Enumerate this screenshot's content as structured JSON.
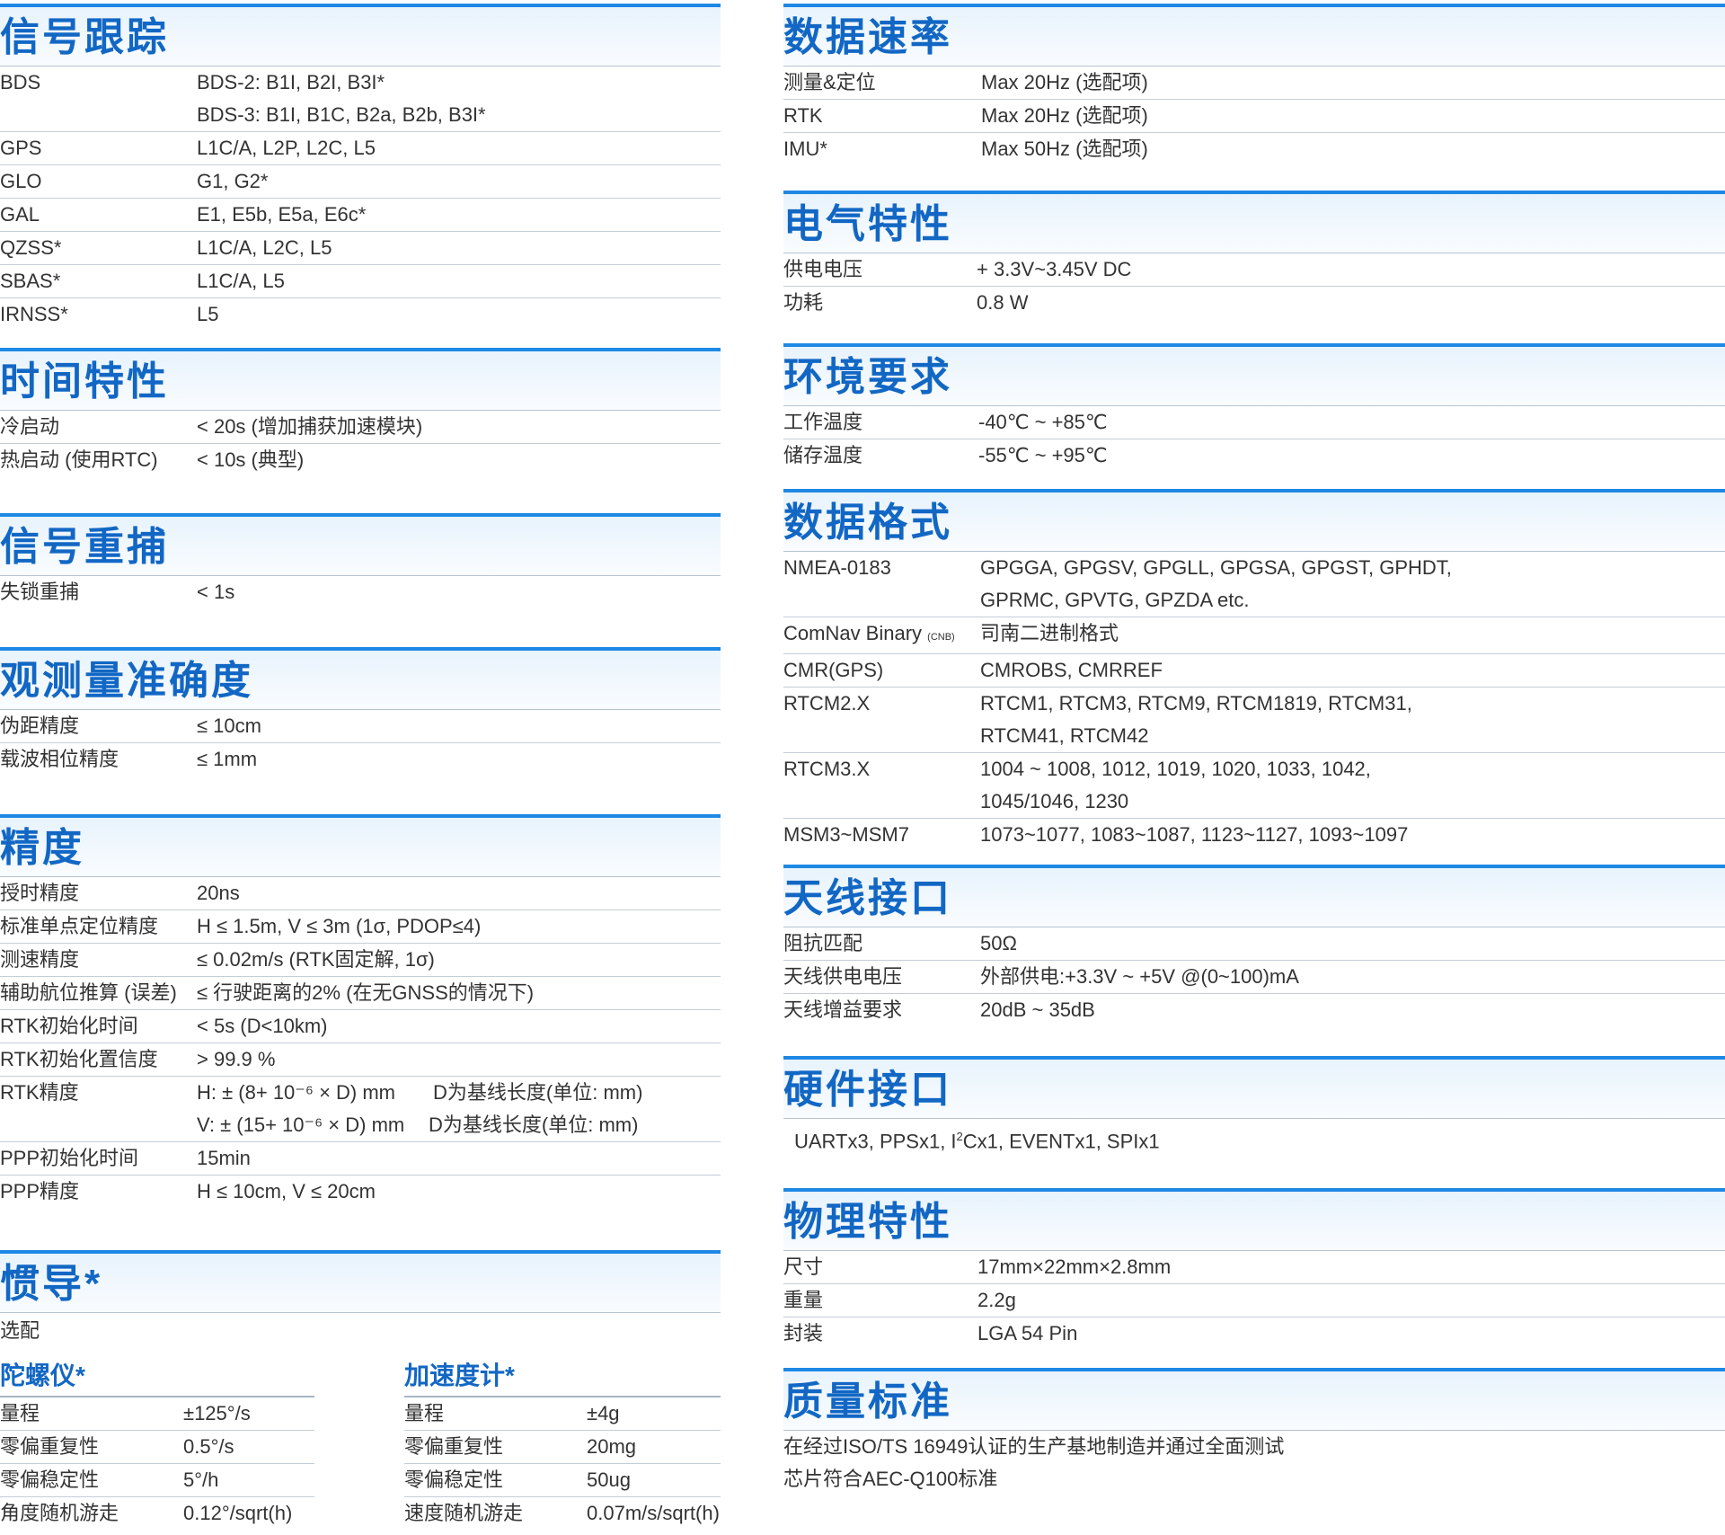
{
  "left_sections": {
    "signal_tracking": {
      "title": "信号跟踪",
      "rows": [
        {
          "label": "BDS",
          "value": "BDS-2: B1I, B2I, B3I*",
          "value2": "BDS-3: B1I, B1C, B2a, B2b, B3I*"
        },
        {
          "label": "GPS",
          "value": "L1C/A, L2P, L2C, L5"
        },
        {
          "label": "GLO",
          "value": "G1, G2*"
        },
        {
          "label": "GAL",
          "value": "E1, E5b, E5a, E6c*"
        },
        {
          "label": "QZSS*",
          "value": "L1C/A, L2C, L5"
        },
        {
          "label": "SBAS*",
          "value": "L1C/A, L5"
        },
        {
          "label": "IRNSS*",
          "value": "L5"
        }
      ]
    },
    "time_characteristics": {
      "title": "时间特性",
      "rows": [
        {
          "label": "冷启动",
          "value": "< 20s (增加捕获加速模块)"
        },
        {
          "label": "热启动 (使用RTC)",
          "value": "< 10s (典型)"
        }
      ]
    },
    "signal_reacquisition": {
      "title": "信号重捕",
      "rows": [
        {
          "label": "失锁重捕",
          "value": "< 1s"
        }
      ]
    },
    "measurement_accuracy": {
      "title": "观测量准确度",
      "rows": [
        {
          "label": "伪距精度",
          "value": "≤ 10cm"
        },
        {
          "label": "载波相位精度",
          "value": "≤ 1mm"
        }
      ]
    },
    "precision": {
      "title": "精度",
      "rows": [
        {
          "label": "授时精度",
          "value": "20ns"
        },
        {
          "label": "标准单点定位精度",
          "value": "H ≤ 1.5m, V ≤ 3m (1σ, PDOP≤4)"
        },
        {
          "label": "测速精度",
          "value": "≤ 0.02m/s (RTK固定解, 1σ)"
        },
        {
          "label": "辅助航位推算 (误差)",
          "value": "≤ 行驶距离的2% (在无GNSS的情况下)"
        },
        {
          "label": "RTK初始化时间",
          "value": "< 5s (D<10km)"
        },
        {
          "label": "RTK初始化置信度",
          "value": "> 99.9 %"
        },
        {
          "label": "RTK精度",
          "value": "H: ± (8+ 10⁻⁶ × D) mm",
          "note": "D为基线长度(单位: mm)",
          "value2": "V: ± (15+ 10⁻⁶ × D) mm",
          "note2": "D为基线长度(单位: mm)"
        },
        {
          "label": "PPP初始化时间",
          "value": "15min"
        },
        {
          "label": "PPP精度",
          "value": "H ≤ 10cm, V ≤ 20cm"
        }
      ]
    },
    "inertial": {
      "title": "惯导*",
      "note": "选配",
      "gyro": {
        "title": "陀螺仪*",
        "rows": [
          {
            "label": "量程",
            "value": "±125°/s"
          },
          {
            "label": "零偏重复性",
            "value": "0.5°/s"
          },
          {
            "label": "零偏稳定性",
            "value": "5°/h"
          },
          {
            "label": "角度随机游走",
            "value": "0.12°/sqrt(h)"
          }
        ]
      },
      "accel": {
        "title": "加速度计*",
        "rows": [
          {
            "label": "量程",
            "value": "±4g"
          },
          {
            "label": "零偏重复性",
            "value": "20mg"
          },
          {
            "label": "零偏稳定性",
            "value": "50ug"
          },
          {
            "label": "速度随机游走",
            "value": "0.07m/s/sqrt(h)"
          }
        ]
      }
    }
  },
  "right_sections": {
    "data_rate": {
      "title": "数据速率",
      "rows": [
        {
          "label": "测量&定位",
          "value": "Max 20Hz (选配项)"
        },
        {
          "label": "RTK",
          "value": "Max 20Hz (选配项)"
        },
        {
          "label": "IMU*",
          "value": "Max 50Hz (选配项)"
        }
      ]
    },
    "electrical": {
      "title": "电气特性",
      "rows": [
        {
          "label": "供电电压",
          "value": "+ 3.3V~3.45V DC"
        },
        {
          "label": "功耗",
          "value": "0.8 W"
        }
      ]
    },
    "environment": {
      "title": "环境要求",
      "rows": [
        {
          "label": "工作温度",
          "value": "-40℃ ~ +85℃"
        },
        {
          "label": "储存温度",
          "value": "-55℃ ~ +95℃"
        }
      ]
    },
    "data_format": {
      "title": "数据格式",
      "rows": [
        {
          "label": "NMEA-0183",
          "value": "GPGGA, GPGSV, GPGLL, GPGSA, GPGST, GPHDT,",
          "value2": "GPRMC, GPVTG, GPZDA etc."
        },
        {
          "label": "ComNav Binary",
          "label_small": "(CNB)",
          "value": "司南二进制格式"
        },
        {
          "label": "CMR(GPS)",
          "value": "CMROBS, CMRREF"
        },
        {
          "label": "RTCM2.X",
          "value": "RTCM1, RTCM3, RTCM9, RTCM1819, RTCM31,",
          "value2": "RTCM41, RTCM42"
        },
        {
          "label": "RTCM3.X",
          "value": "1004 ~ 1008, 1012, 1019, 1020, 1033, 1042,",
          "value2": "1045/1046, 1230"
        },
        {
          "label": "MSM3~MSM7",
          "value": "1073~1077, 1083~1087, 1123~1127, 1093~1097"
        }
      ]
    },
    "antenna": {
      "title": "天线接口",
      "rows": [
        {
          "label": "阻抗匹配",
          "value": "50Ω"
        },
        {
          "label": "天线供电电压",
          "value": "外部供电:+3.3V ~ +5V @(0~100)mA"
        },
        {
          "label": "天线增益要求",
          "value": "20dB ~ 35dB"
        }
      ]
    },
    "hardware": {
      "title": "硬件接口",
      "text_a": "UARTx3, PPSx1, I",
      "text_sup": "2",
      "text_b": "Cx1, EVENTx1, SPIx1"
    },
    "physical": {
      "title": "物理特性",
      "rows": [
        {
          "label": "尺寸",
          "value": "17mm×22mm×2.8mm"
        },
        {
          "label": "重量",
          "value": "2.2g"
        },
        {
          "label": "封装",
          "value": "LGA 54 Pin"
        }
      ]
    },
    "quality": {
      "title": "质量标准",
      "line1": "在经过ISO/TS 16949认证的生产基地制造并通过全面测试",
      "line2": "芯片符合AEC-Q100标准"
    }
  }
}
